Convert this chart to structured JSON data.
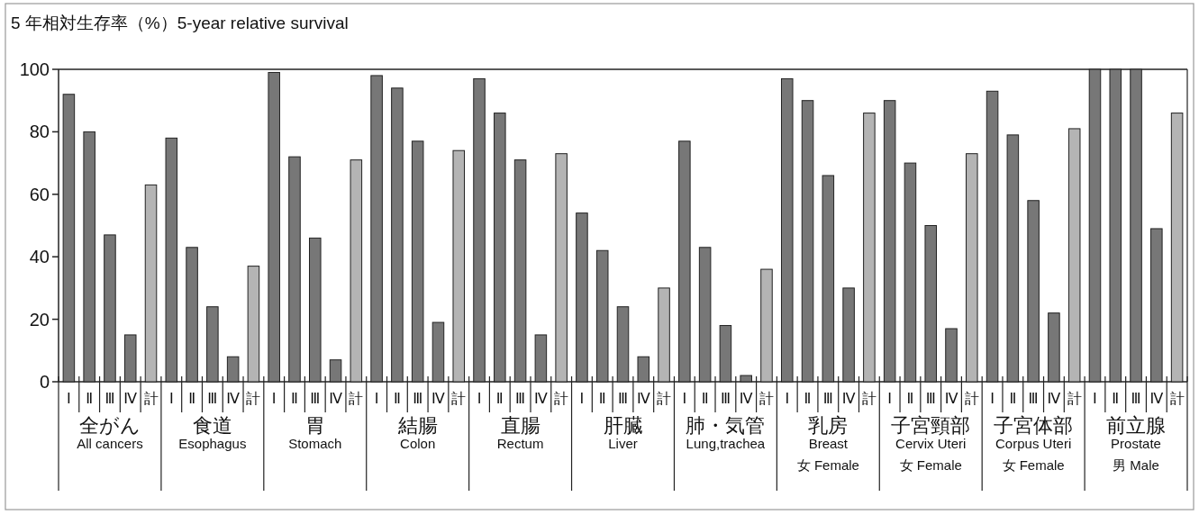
{
  "chart_data": {
    "type": "bar",
    "title": "5 年相対生存率（%）5-year relative survival",
    "categories": [
      "Ⅰ",
      "Ⅱ",
      "Ⅲ",
      "Ⅳ",
      "計",
      "Ⅰ",
      "Ⅱ",
      "Ⅲ",
      "Ⅳ",
      "計",
      "Ⅰ",
      "Ⅱ",
      "Ⅲ",
      "Ⅳ",
      "計",
      "Ⅰ",
      "Ⅱ",
      "Ⅲ",
      "Ⅳ",
      "計",
      "Ⅰ",
      "Ⅱ",
      "Ⅲ",
      "Ⅳ",
      "計",
      "Ⅰ",
      "Ⅱ",
      "Ⅲ",
      "Ⅳ",
      "計",
      "Ⅰ",
      "Ⅱ",
      "Ⅲ",
      "Ⅳ",
      "計",
      "Ⅰ",
      "Ⅱ",
      "Ⅲ",
      "Ⅳ",
      "計",
      "Ⅰ",
      "Ⅱ",
      "Ⅲ",
      "Ⅳ",
      "計",
      "Ⅰ",
      "Ⅱ",
      "Ⅲ",
      "Ⅳ",
      "計",
      "Ⅰ",
      "Ⅱ",
      "Ⅲ",
      "Ⅳ",
      "計"
    ],
    "values": [
      92,
      80,
      47,
      15,
      63,
      78,
      43,
      24,
      8,
      37,
      99,
      72,
      46,
      7,
      71,
      98,
      94,
      77,
      19,
      74,
      97,
      86,
      71,
      15,
      73,
      54,
      42,
      24,
      8,
      30,
      77,
      43,
      18,
      2,
      36,
      97,
      90,
      66,
      30,
      86,
      90,
      70,
      50,
      17,
      73,
      93,
      79,
      58,
      22,
      81,
      100,
      100,
      100,
      49,
      86
    ],
    "colors": [
      "#777777",
      "#777777",
      "#777777",
      "#777777",
      "#b4b4b4",
      "#777777",
      "#777777",
      "#777777",
      "#777777",
      "#b4b4b4",
      "#777777",
      "#777777",
      "#777777",
      "#777777",
      "#b4b4b4",
      "#777777",
      "#777777",
      "#777777",
      "#777777",
      "#b4b4b4",
      "#777777",
      "#777777",
      "#777777",
      "#777777",
      "#b4b4b4",
      "#777777",
      "#777777",
      "#777777",
      "#777777",
      "#b4b4b4",
      "#777777",
      "#777777",
      "#777777",
      "#777777",
      "#b4b4b4",
      "#777777",
      "#777777",
      "#777777",
      "#777777",
      "#b4b4b4",
      "#777777",
      "#777777",
      "#777777",
      "#777777",
      "#b4b4b4",
      "#777777",
      "#777777",
      "#777777",
      "#777777",
      "#b4b4b4",
      "#777777",
      "#777777",
      "#777777",
      "#777777",
      "#b4b4b4"
    ],
    "ylim": [
      0,
      100
    ],
    "yticks": [
      0,
      20,
      40,
      60,
      80,
      100
    ],
    "annotations": [
      "全がん\nAll cancers",
      "食道\nEsophagus",
      "胃\nStomach",
      "結腸\nColon",
      "直腸\nRectum",
      "肝臓\nLiver",
      "肺・気管\nLung,trachea",
      "乳房\nBreast\n女 Female",
      "子宮頸部\nCervix Uteri\n女 Female",
      "子宮体部\nCorpus Uteri\n女 Female",
      "前立腺\nProstate\n男 Male"
    ]
  }
}
